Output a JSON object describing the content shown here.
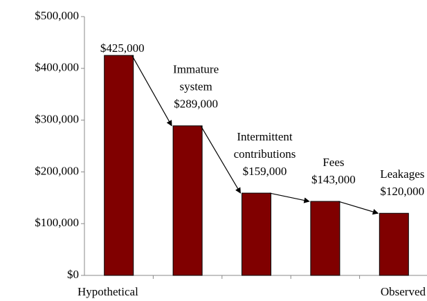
{
  "chart_data": {
    "type": "bar",
    "categories": [
      "Hypothetical",
      null,
      null,
      null,
      "Observed"
    ],
    "values": [
      425000,
      289000,
      159000,
      143000,
      120000
    ],
    "value_labels": [
      "$425,000",
      "$289,000",
      "$159,000",
      "$143,000",
      "$120,000"
    ],
    "annotations": [
      null,
      [
        "Immature",
        "system"
      ],
      [
        "Intermittent",
        "contributions"
      ],
      [
        "Fees"
      ],
      [
        "Leakages"
      ]
    ],
    "color": "#800000",
    "ylim": [
      0,
      500000
    ],
    "yticks": [
      {
        "value": 0,
        "label": "$0"
      },
      {
        "value": 100000,
        "label": "$100,000"
      },
      {
        "value": 200000,
        "label": "$200,000"
      },
      {
        "value": 300000,
        "label": "$300,000"
      },
      {
        "value": 400000,
        "label": "$400,000"
      },
      {
        "value": 500000,
        "label": "$500,000"
      }
    ],
    "grid": false
  }
}
